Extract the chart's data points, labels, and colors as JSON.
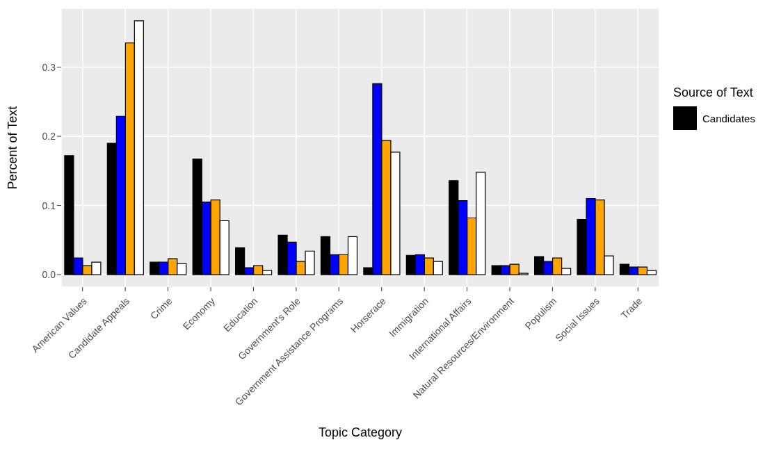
{
  "chart_data": {
    "type": "bar",
    "xlabel": "Topic Category",
    "ylabel": "Percent of Text",
    "legend_title": "Source of Text",
    "categories": [
      "American Values",
      "Candidate Appeals",
      "Crime",
      "Economy",
      "Education",
      "Government's Role",
      "Government Assistance Programs",
      "Horserace",
      "Immigration",
      "International Affairs",
      "Natural Resources/Environment",
      "Populism",
      "Social Issues",
      "Trade"
    ],
    "series": [
      {
        "name": "Candidates",
        "color": "#000000",
        "values": [
          0.172,
          0.19,
          0.018,
          0.167,
          0.039,
          0.057,
          0.055,
          0.01,
          0.028,
          0.136,
          0.013,
          0.026,
          0.08,
          0.015
        ]
      },
      {
        "color": "#0000ff",
        "values": [
          0.024,
          0.229,
          0.018,
          0.105,
          0.01,
          0.047,
          0.029,
          0.276,
          0.029,
          0.107,
          0.013,
          0.019,
          0.11,
          0.011
        ]
      },
      {
        "color": "#ffa500",
        "values": [
          0.013,
          0.335,
          0.023,
          0.108,
          0.013,
          0.019,
          0.029,
          0.194,
          0.024,
          0.082,
          0.015,
          0.024,
          0.108,
          0.011
        ]
      },
      {
        "color": "#ffffff",
        "values": [
          0.018,
          0.367,
          0.016,
          0.078,
          0.006,
          0.034,
          0.055,
          0.177,
          0.019,
          0.148,
          0.002,
          0.009,
          0.027,
          0.006
        ]
      }
    ],
    "ylim": [
      -0.018,
      0.385
    ],
    "yticks": [
      {
        "value": 0,
        "label": "0.0"
      },
      0.1,
      0.2,
      0.3
    ],
    "grid": true,
    "legend": "right"
  }
}
